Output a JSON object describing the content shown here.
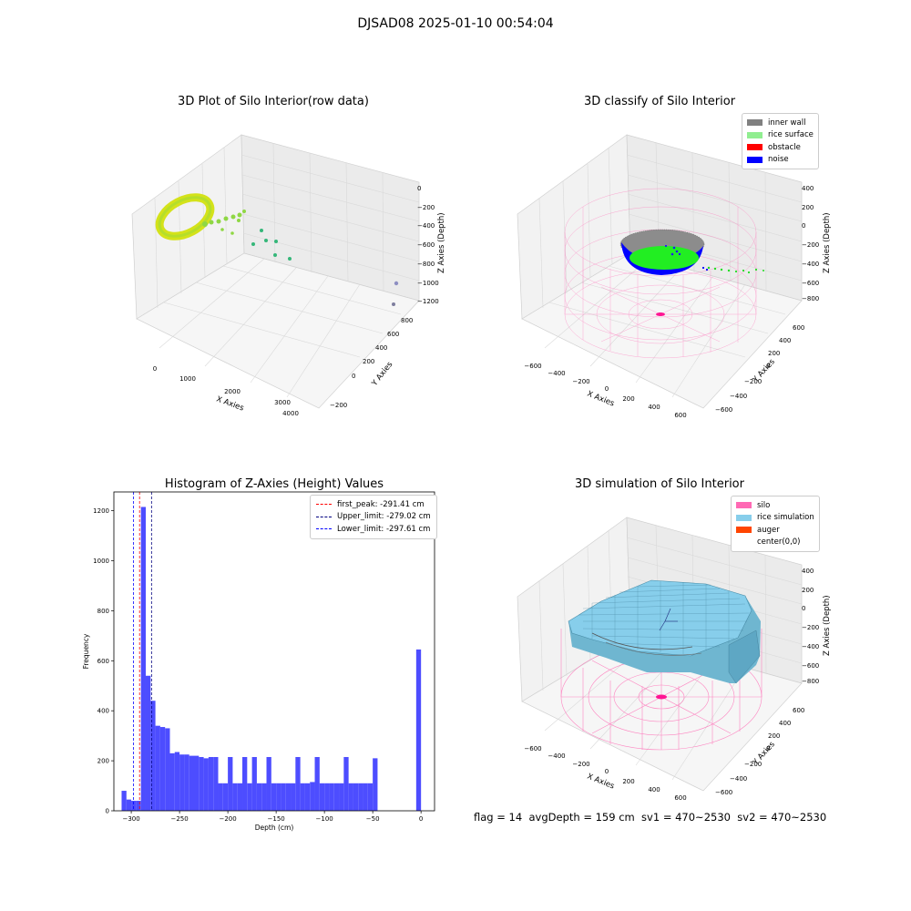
{
  "suptitle": "DJSAD08 2025-01-10 00:54:04",
  "footer": "flag = 14  avgDepth = 159 cm  sv1 = 470~2530  sv2 = 470~2530",
  "colors": {
    "histogram": "#4d4dff",
    "first_peak": "#ff0000",
    "upper_limit": "#000080",
    "lower_limit": "#0000ff",
    "inner_wall": "#808080",
    "rice_surface": "#90ee90",
    "obstacle": "#ff0000",
    "noise": "#0000ff",
    "silo": "#ff69b4",
    "rice_simulation": "#87ceeb",
    "auger": "#ff4500"
  },
  "chart_data": [
    {
      "type": "scatter",
      "projection": "3d",
      "title": "3D Plot of Silo Interior(row data)",
      "xlabel": "X Axies",
      "ylabel": "Y Axies",
      "zlabel": "Z Axies (Depth)",
      "x_ticks": [
        "0",
        "1000",
        "2000",
        "3000",
        "4000"
      ],
      "y_ticks": [
        "−200",
        "0",
        "200",
        "400",
        "600",
        "800"
      ],
      "z_ticks": [
        "0",
        "−200",
        "−400",
        "−600",
        "−800",
        "−1000",
        "−1200"
      ],
      "colormap": "viridis",
      "grid": true
    },
    {
      "type": "scatter",
      "projection": "3d",
      "title": "3D classify of Silo Interior",
      "xlabel": "X Axies",
      "ylabel": "Y Axies",
      "zlabel": "Z Axies (Depth)",
      "x_ticks": [
        "−600",
        "−400",
        "−200",
        "0",
        "200",
        "400",
        "600"
      ],
      "y_ticks": [
        "−600",
        "−400",
        "−200",
        "0",
        "200",
        "400",
        "600"
      ],
      "z_ticks": [
        "400",
        "200",
        "0",
        "−200",
        "−400",
        "−600",
        "−800"
      ],
      "legend": [
        "inner wall",
        "rice surface",
        "obstacle",
        "noise"
      ],
      "legend_location": "top-right",
      "grid": true
    },
    {
      "type": "bar",
      "title": "Histogram of Z-Axies (Height) Values",
      "xlabel": "Depth (cm)",
      "ylabel": "Frequency",
      "xlim": [
        -318,
        14
      ],
      "ylim": [
        0,
        1275
      ],
      "x_ticks": [
        -300,
        -250,
        -200,
        -150,
        -100,
        -50,
        0
      ],
      "y_ticks": [
        0,
        200,
        400,
        600,
        800,
        1000,
        1200
      ],
      "bin_width": 5,
      "bin_starts": [
        -310,
        -305,
        -300,
        -295,
        -290,
        -285,
        -280,
        -275,
        -270,
        -265,
        -260,
        -255,
        -250,
        -245,
        -240,
        -235,
        -230,
        -225,
        -220,
        -215,
        -210,
        -205,
        -200,
        -195,
        -190,
        -185,
        -180,
        -175,
        -170,
        -165,
        -160,
        -155,
        -150,
        -145,
        -140,
        -135,
        -130,
        -125,
        -120,
        -115,
        -110,
        -105,
        -100,
        -95,
        -90,
        -85,
        -80,
        -75,
        -70,
        -65,
        -60,
        -55,
        -50,
        -5
      ],
      "values": [
        80,
        45,
        40,
        40,
        1215,
        540,
        440,
        340,
        335,
        330,
        230,
        235,
        225,
        225,
        220,
        220,
        215,
        210,
        215,
        215,
        110,
        110,
        215,
        110,
        110,
        215,
        110,
        215,
        110,
        110,
        215,
        110,
        110,
        110,
        110,
        110,
        215,
        110,
        110,
        115,
        215,
        110,
        110,
        110,
        110,
        110,
        215,
        110,
        110,
        110,
        110,
        110,
        210,
        645
      ],
      "series": [
        {
          "name": "first_peak: -291.41 cm",
          "value": -291.41,
          "style": "dashed"
        },
        {
          "name": "Upper_limit: -279.02 cm",
          "value": -279.02,
          "style": "dashed"
        },
        {
          "name": "Lower_limit: -297.61 cm",
          "value": -297.61,
          "style": "dashed"
        }
      ],
      "legend_location": "top-right",
      "grid": false
    },
    {
      "type": "area",
      "projection": "3d",
      "title": "3D simulation of Silo Interior",
      "xlabel": "X Axies",
      "ylabel": "Y Axies",
      "zlabel": "Z Axies (Depth)",
      "x_ticks": [
        "−600",
        "−400",
        "−200",
        "0",
        "200",
        "400",
        "600"
      ],
      "y_ticks": [
        "−600",
        "−400",
        "−200",
        "0",
        "200",
        "400",
        "600"
      ],
      "z_ticks": [
        "400",
        "200",
        "0",
        "−200",
        "−400",
        "−600",
        "−800"
      ],
      "legend": [
        "silo",
        "rice simulation",
        "auger",
        "center(0,0)"
      ],
      "legend_location": "top-right",
      "grid": true
    }
  ]
}
